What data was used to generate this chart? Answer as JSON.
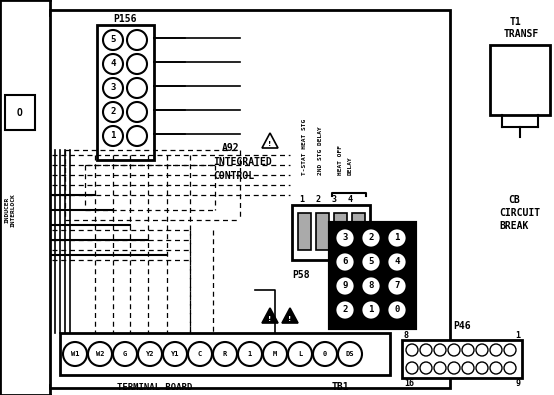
{
  "bg_color": "#ffffff",
  "line_color": "#000000",
  "fig_width": 5.54,
  "fig_height": 3.95,
  "p156_pins": [
    "5",
    "4",
    "3",
    "2",
    "1"
  ],
  "p58_pins": [
    [
      "3",
      "2",
      "1"
    ],
    [
      "6",
      "5",
      "4"
    ],
    [
      "9",
      "8",
      "7"
    ],
    [
      "2",
      "1",
      "0"
    ]
  ],
  "terminal_labels": [
    "W1",
    "W2",
    "G",
    "Y2",
    "Y1",
    "C",
    "R",
    "1",
    "M",
    "L",
    "0",
    "DS"
  ]
}
